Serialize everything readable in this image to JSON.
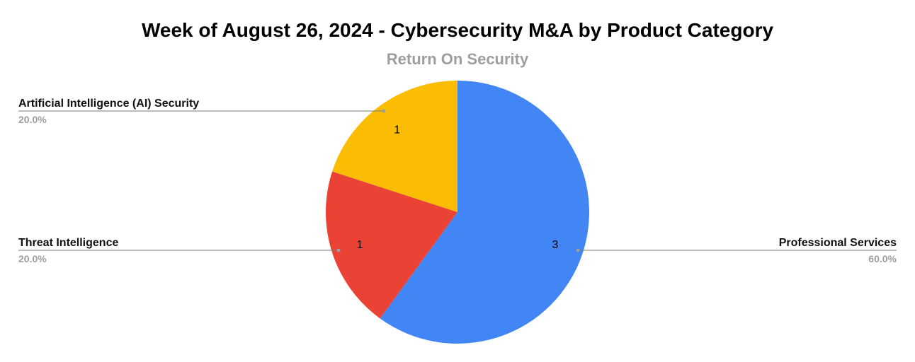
{
  "chart_data": {
    "type": "pie",
    "title": "Week of August 26, 2024 - Cybersecurity M&A by Product Category",
    "subtitle": "Return On Security",
    "start_angle_deg": 0,
    "direction": "clockwise",
    "slices": [
      {
        "label": "Professional Services",
        "value": 3,
        "percent": "60.0%",
        "color": "#4285f4"
      },
      {
        "label": "Threat Intelligence",
        "value": 1,
        "percent": "20.0%",
        "color": "#ea4335"
      },
      {
        "label": "Artificial Intelligence (AI) Security",
        "value": 1,
        "percent": "20.0%",
        "color": "#fbbc04"
      }
    ]
  }
}
